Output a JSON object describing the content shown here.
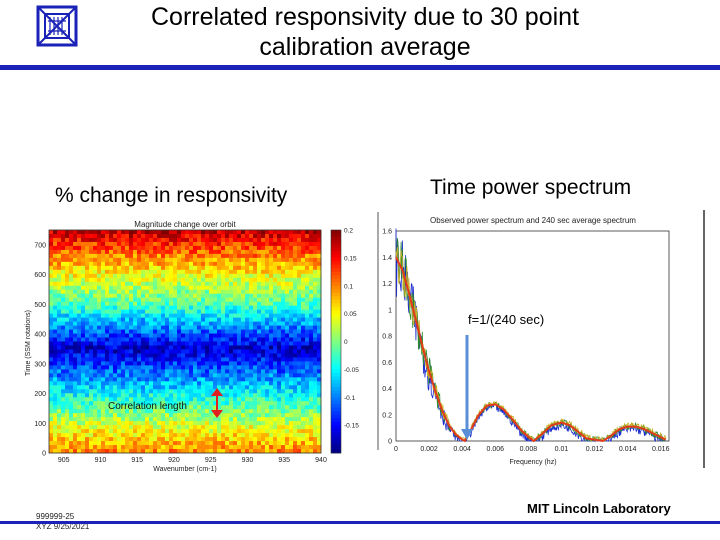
{
  "slide": {
    "title_line1": "Correlated responsivity due to 30 point",
    "title_line2": "calibration average",
    "accent_color": "#1a22b8",
    "left_label": "% change in responsivity",
    "right_label": "Time power spectrum",
    "footer_id_line1": "999999-25",
    "footer_id_line2": "XYZ 9/25/2021",
    "footer_lab": "MIT Lincoln Laboratory",
    "logo_icon": "mit-ll-logo-icon"
  },
  "chart_data": [
    {
      "type": "heatmap",
      "title": "Magnitude change over orbit",
      "xlabel": "Wavenumber (cm-1)",
      "ylabel": "Time (SSM rotations)",
      "x_ticks": [
        "905",
        "910",
        "915",
        "920",
        "925",
        "930",
        "935",
        "940"
      ],
      "y_ticks": [
        "0",
        "100",
        "200",
        "300",
        "400",
        "500",
        "600",
        "700"
      ],
      "xlim": [
        903,
        940
      ],
      "ylim": [
        0,
        750
      ],
      "colorbar_ticks": [
        "0.2",
        "0.15",
        "0.1",
        "0.05",
        "0",
        "-0.05",
        "-0.1",
        "-0.15"
      ],
      "colorbar_range": [
        -0.2,
        0.2
      ],
      "annotation": "Correlation length",
      "profile_time": [
        0,
        100,
        200,
        300,
        350,
        400,
        500,
        600,
        700,
        750
      ],
      "profile_value": [
        0.1,
        0.03,
        -0.05,
        -0.13,
        -0.17,
        -0.12,
        -0.02,
        0.05,
        0.13,
        0.18
      ]
    },
    {
      "type": "line",
      "title": "Observed power spectrum and 240 sec average spectrum",
      "xlabel": "Frequency (hz)",
      "ylabel": "",
      "x_ticks": [
        "0",
        "0.002",
        "0.004",
        "0.006",
        "0.008",
        "0.01",
        "0.012",
        "0.014",
        "0.016"
      ],
      "y_ticks": [
        "0",
        "0.2",
        "0.4",
        "0.6",
        "0.8",
        "1",
        "1.2",
        "1.4",
        "1.6"
      ],
      "xlim": [
        0,
        0.0165
      ],
      "ylim": [
        0,
        1.6
      ],
      "annotation": "f=1/(240 sec)",
      "annotation_x": 0.00417,
      "series": [
        {
          "name": "240 sec average spectrum",
          "color": "#e03a1a",
          "x": [
            0,
            0.0004,
            0.0008,
            0.0012,
            0.0016,
            0.002,
            0.0024,
            0.0028,
            0.0032,
            0.0036,
            0.004,
            0.00417,
            0.0045,
            0.005,
            0.0055,
            0.006,
            0.0065,
            0.007,
            0.0075,
            0.008,
            0.00833,
            0.0088,
            0.0094,
            0.01,
            0.0105,
            0.011,
            0.0115,
            0.0125,
            0.013,
            0.0135,
            0.014,
            0.0145,
            0.015,
            0.0155,
            0.016,
            0.0163
          ],
          "values": [
            1.4,
            1.3,
            1.12,
            0.92,
            0.72,
            0.53,
            0.37,
            0.23,
            0.12,
            0.05,
            0.01,
            0.0,
            0.08,
            0.2,
            0.27,
            0.28,
            0.24,
            0.17,
            0.09,
            0.03,
            0.0,
            0.05,
            0.12,
            0.14,
            0.12,
            0.07,
            0.02,
            0.0,
            0.04,
            0.09,
            0.11,
            0.11,
            0.09,
            0.06,
            0.03,
            0.01
          ]
        }
      ]
    }
  ]
}
